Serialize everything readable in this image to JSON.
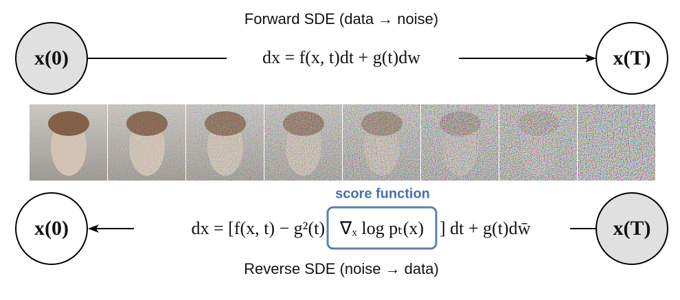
{
  "forward": {
    "title": "Forward SDE (data → noise)",
    "start": "x(0)",
    "end": "x(T)",
    "equation": "dx = f(x, t)dt + g(t)dw"
  },
  "reverse": {
    "title": "Reverse SDE (noise → data)",
    "start": "x(T)",
    "end": "x(0)",
    "equation_left": "dx = [f(x, t) − g²(t)",
    "score_term": "∇ₓ log pₜ(x)",
    "equation_right": "] dt + g(t)dw̄",
    "score_label": "score function"
  }
}
